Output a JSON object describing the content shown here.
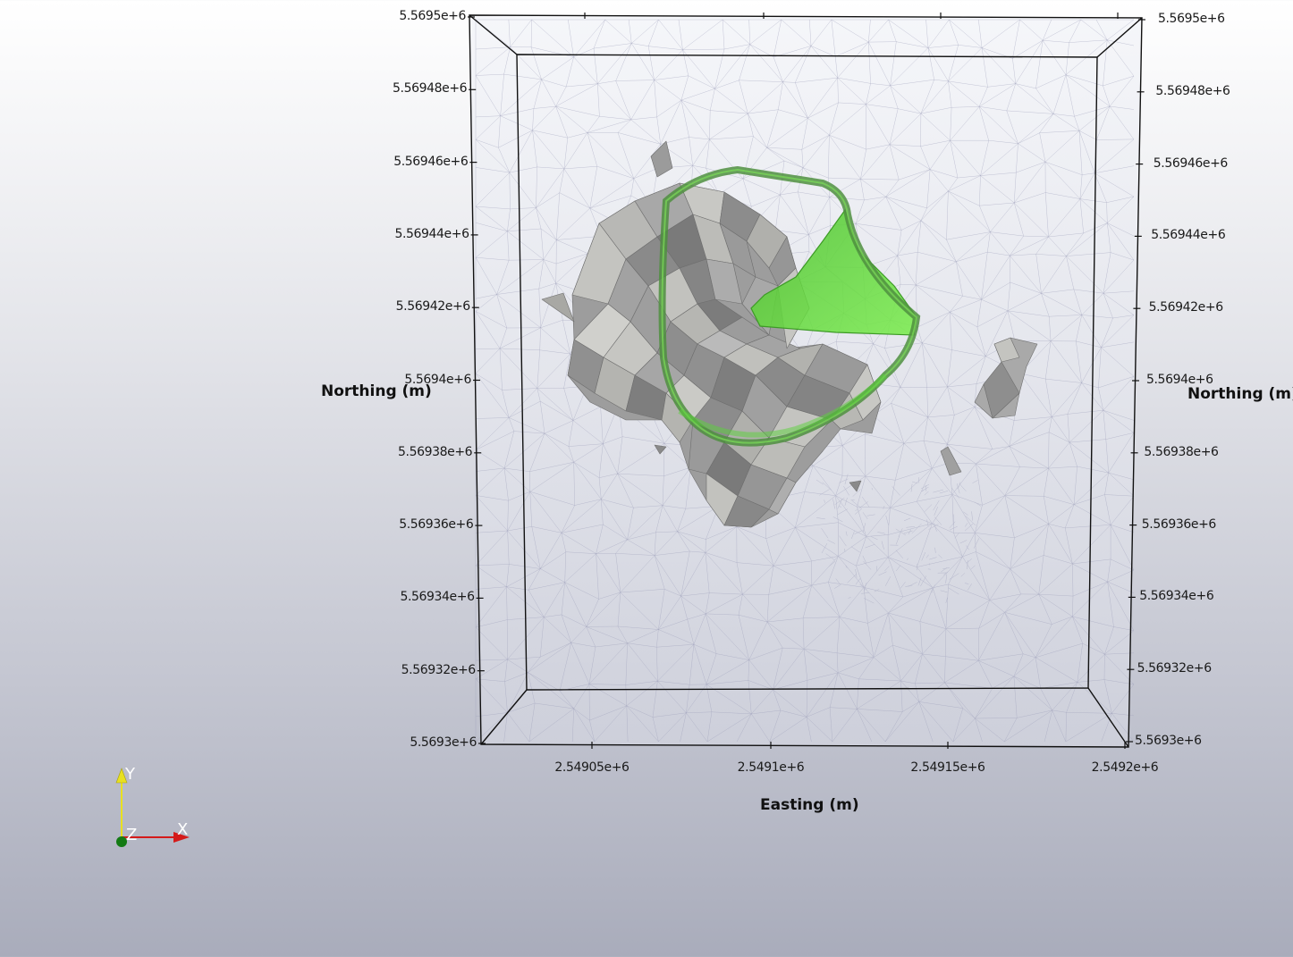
{
  "scene": {
    "axes": {
      "x_title": "Easting (m)",
      "y_title_left": "Northing (m)",
      "y_title_right": "Northing (m)",
      "y_ticks_left": [
        "5.5695e+6",
        "5.56948e+6",
        "5.56946e+6",
        "5.56944e+6",
        "5.56942e+6",
        "5.5694e+6",
        "5.56938e+6",
        "5.56936e+6",
        "5.56934e+6",
        "5.56932e+6",
        "5.5693e+6"
      ],
      "y_ticks_right": [
        "5.5695e+6",
        "5.56948e+6",
        "5.56946e+6",
        "5.56944e+6",
        "5.56942e+6",
        "5.5694e+6",
        "5.56938e+6",
        "5.56936e+6",
        "5.56934e+6",
        "5.56932e+6",
        "5.5693e+6"
      ],
      "x_ticks": [
        "2.54905e+6",
        "2.5491e+6",
        "2.54915e+6",
        "2.5492e+6"
      ]
    },
    "orientation": {
      "y_label": "Y",
      "x_label": "X",
      "z_label": "Z",
      "x_color": "#d41a1a",
      "y_color": "#e8e020",
      "z_color": "#137a13"
    },
    "colors": {
      "box_edges": "#111111",
      "mesh_lines": "#9a9cb8",
      "rock_surface": "#9c9c9c",
      "green_surface": "#5fd63a",
      "green_ring": "#4a8a3a"
    }
  }
}
